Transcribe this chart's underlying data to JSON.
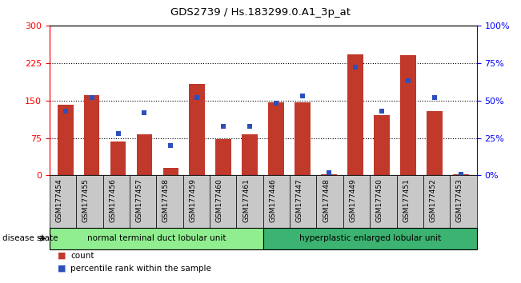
{
  "title": "GDS2739 / Hs.183299.0.A1_3p_at",
  "samples": [
    "GSM177454",
    "GSM177455",
    "GSM177456",
    "GSM177457",
    "GSM177458",
    "GSM177459",
    "GSM177460",
    "GSM177461",
    "GSM177446",
    "GSM177447",
    "GSM177448",
    "GSM177449",
    "GSM177450",
    "GSM177451",
    "GSM177452",
    "GSM177453"
  ],
  "counts": [
    142,
    160,
    68,
    82,
    15,
    183,
    72,
    82,
    147,
    146,
    3,
    242,
    120,
    240,
    128,
    3
  ],
  "percentiles": [
    43,
    52,
    28,
    42,
    20,
    52,
    33,
    33,
    48,
    53,
    2,
    72,
    43,
    63,
    52,
    1
  ],
  "group1_label": "normal terminal duct lobular unit",
  "group2_label": "hyperplastic enlarged lobular unit",
  "n_group1": 8,
  "n_group2": 8,
  "ylim_left": [
    0,
    300
  ],
  "ylim_right": [
    0,
    100
  ],
  "yticks_left": [
    0,
    75,
    150,
    225,
    300
  ],
  "yticks_right": [
    0,
    25,
    50,
    75,
    100
  ],
  "yticklabels_left": [
    "0",
    "75",
    "150",
    "225",
    "300"
  ],
  "yticklabels_right": [
    "0%",
    "25%",
    "50%",
    "75%",
    "100%"
  ],
  "bar_color": "#C0392B",
  "dot_color": "#2B4FBB",
  "group_bg_color": "#C8C8C8",
  "group1_fill": "#90EE90",
  "group2_fill": "#3CB371",
  "legend_count_color": "#C0392B",
  "legend_pct_color": "#2B4FBB",
  "grid_yticks": [
    75,
    150,
    225
  ],
  "bar_width": 0.6
}
